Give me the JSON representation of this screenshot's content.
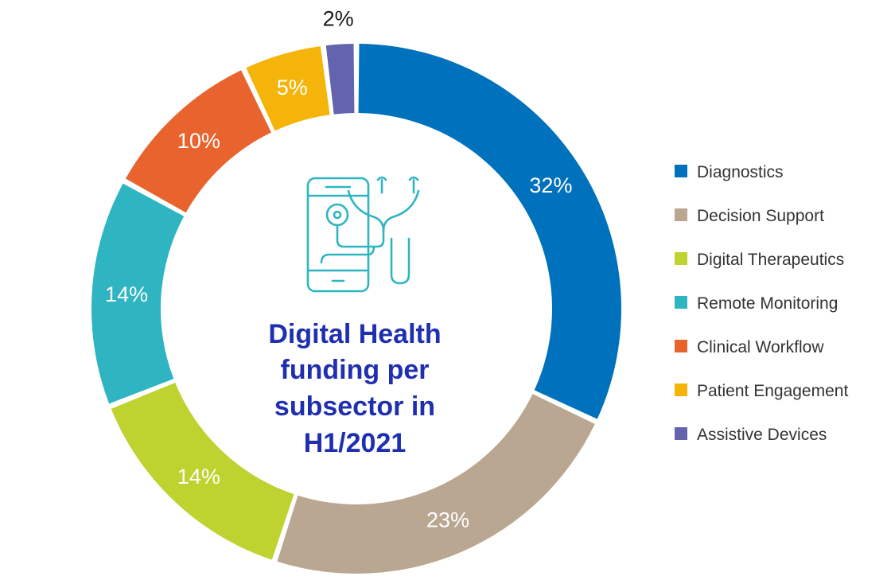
{
  "chart_data": {
    "type": "pie",
    "title": [
      "Digital Health",
      "funding per",
      "subsector in",
      "H1/2021"
    ],
    "categories": [
      "Diagnostics",
      "Decision Support",
      "Digital Therapeutics",
      "Remote Monitoring",
      "Clinical Workflow",
      "Patient Engagement",
      "Assistive Devices"
    ],
    "values": [
      32,
      23,
      14,
      14,
      10,
      5,
      2
    ],
    "labels": [
      "32%",
      "23%",
      "14%",
      "14%",
      "10%",
      "5%",
      "2%"
    ],
    "colors": [
      "#0071bc",
      "#b9a792",
      "#bed230",
      "#2fb5c2",
      "#e8632e",
      "#f5b40a",
      "#6464ae"
    ],
    "legend_position": "right",
    "title_color": "#1f2fb0",
    "center_icon": "smartphone-stethoscope-icon",
    "icon_color": "#2fb5c2"
  }
}
